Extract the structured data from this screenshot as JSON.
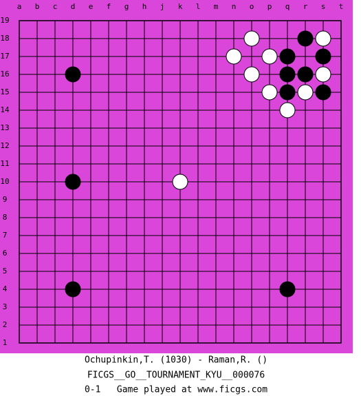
{
  "board": {
    "columns": [
      "a",
      "b",
      "c",
      "d",
      "e",
      "f",
      "g",
      "h",
      "j",
      "k",
      "l",
      "m",
      "n",
      "o",
      "p",
      "q",
      "r",
      "s",
      "t"
    ],
    "rows": [
      "19",
      "18",
      "17",
      "16",
      "15",
      "14",
      "13",
      "12",
      "11",
      "10",
      "9",
      "8",
      "7",
      "6",
      "5",
      "4",
      "3",
      "2",
      "1"
    ],
    "stones": [
      {
        "col": "o",
        "row": "18",
        "color": "white"
      },
      {
        "col": "r",
        "row": "18",
        "color": "black"
      },
      {
        "col": "s",
        "row": "18",
        "color": "white"
      },
      {
        "col": "n",
        "row": "17",
        "color": "white"
      },
      {
        "col": "p",
        "row": "17",
        "color": "white"
      },
      {
        "col": "q",
        "row": "17",
        "color": "black"
      },
      {
        "col": "s",
        "row": "17",
        "color": "black"
      },
      {
        "col": "d",
        "row": "16",
        "color": "black"
      },
      {
        "col": "o",
        "row": "16",
        "color": "white"
      },
      {
        "col": "q",
        "row": "16",
        "color": "black"
      },
      {
        "col": "r",
        "row": "16",
        "color": "black"
      },
      {
        "col": "s",
        "row": "16",
        "color": "white"
      },
      {
        "col": "p",
        "row": "15",
        "color": "white"
      },
      {
        "col": "q",
        "row": "15",
        "color": "black"
      },
      {
        "col": "r",
        "row": "15",
        "color": "white"
      },
      {
        "col": "s",
        "row": "15",
        "color": "black"
      },
      {
        "col": "q",
        "row": "14",
        "color": "white"
      },
      {
        "col": "d",
        "row": "10",
        "color": "black"
      },
      {
        "col": "k",
        "row": "10",
        "color": "white"
      },
      {
        "col": "d",
        "row": "4",
        "color": "black"
      },
      {
        "col": "q",
        "row": "4",
        "color": "black"
      }
    ]
  },
  "caption": {
    "players": "Ochupinkin,T. (1030) - Raman,R. ()",
    "event": "FICGS__GO__TOURNAMENT_KYU__000076",
    "result": "0-1   Game played at www.ficgs.com"
  }
}
